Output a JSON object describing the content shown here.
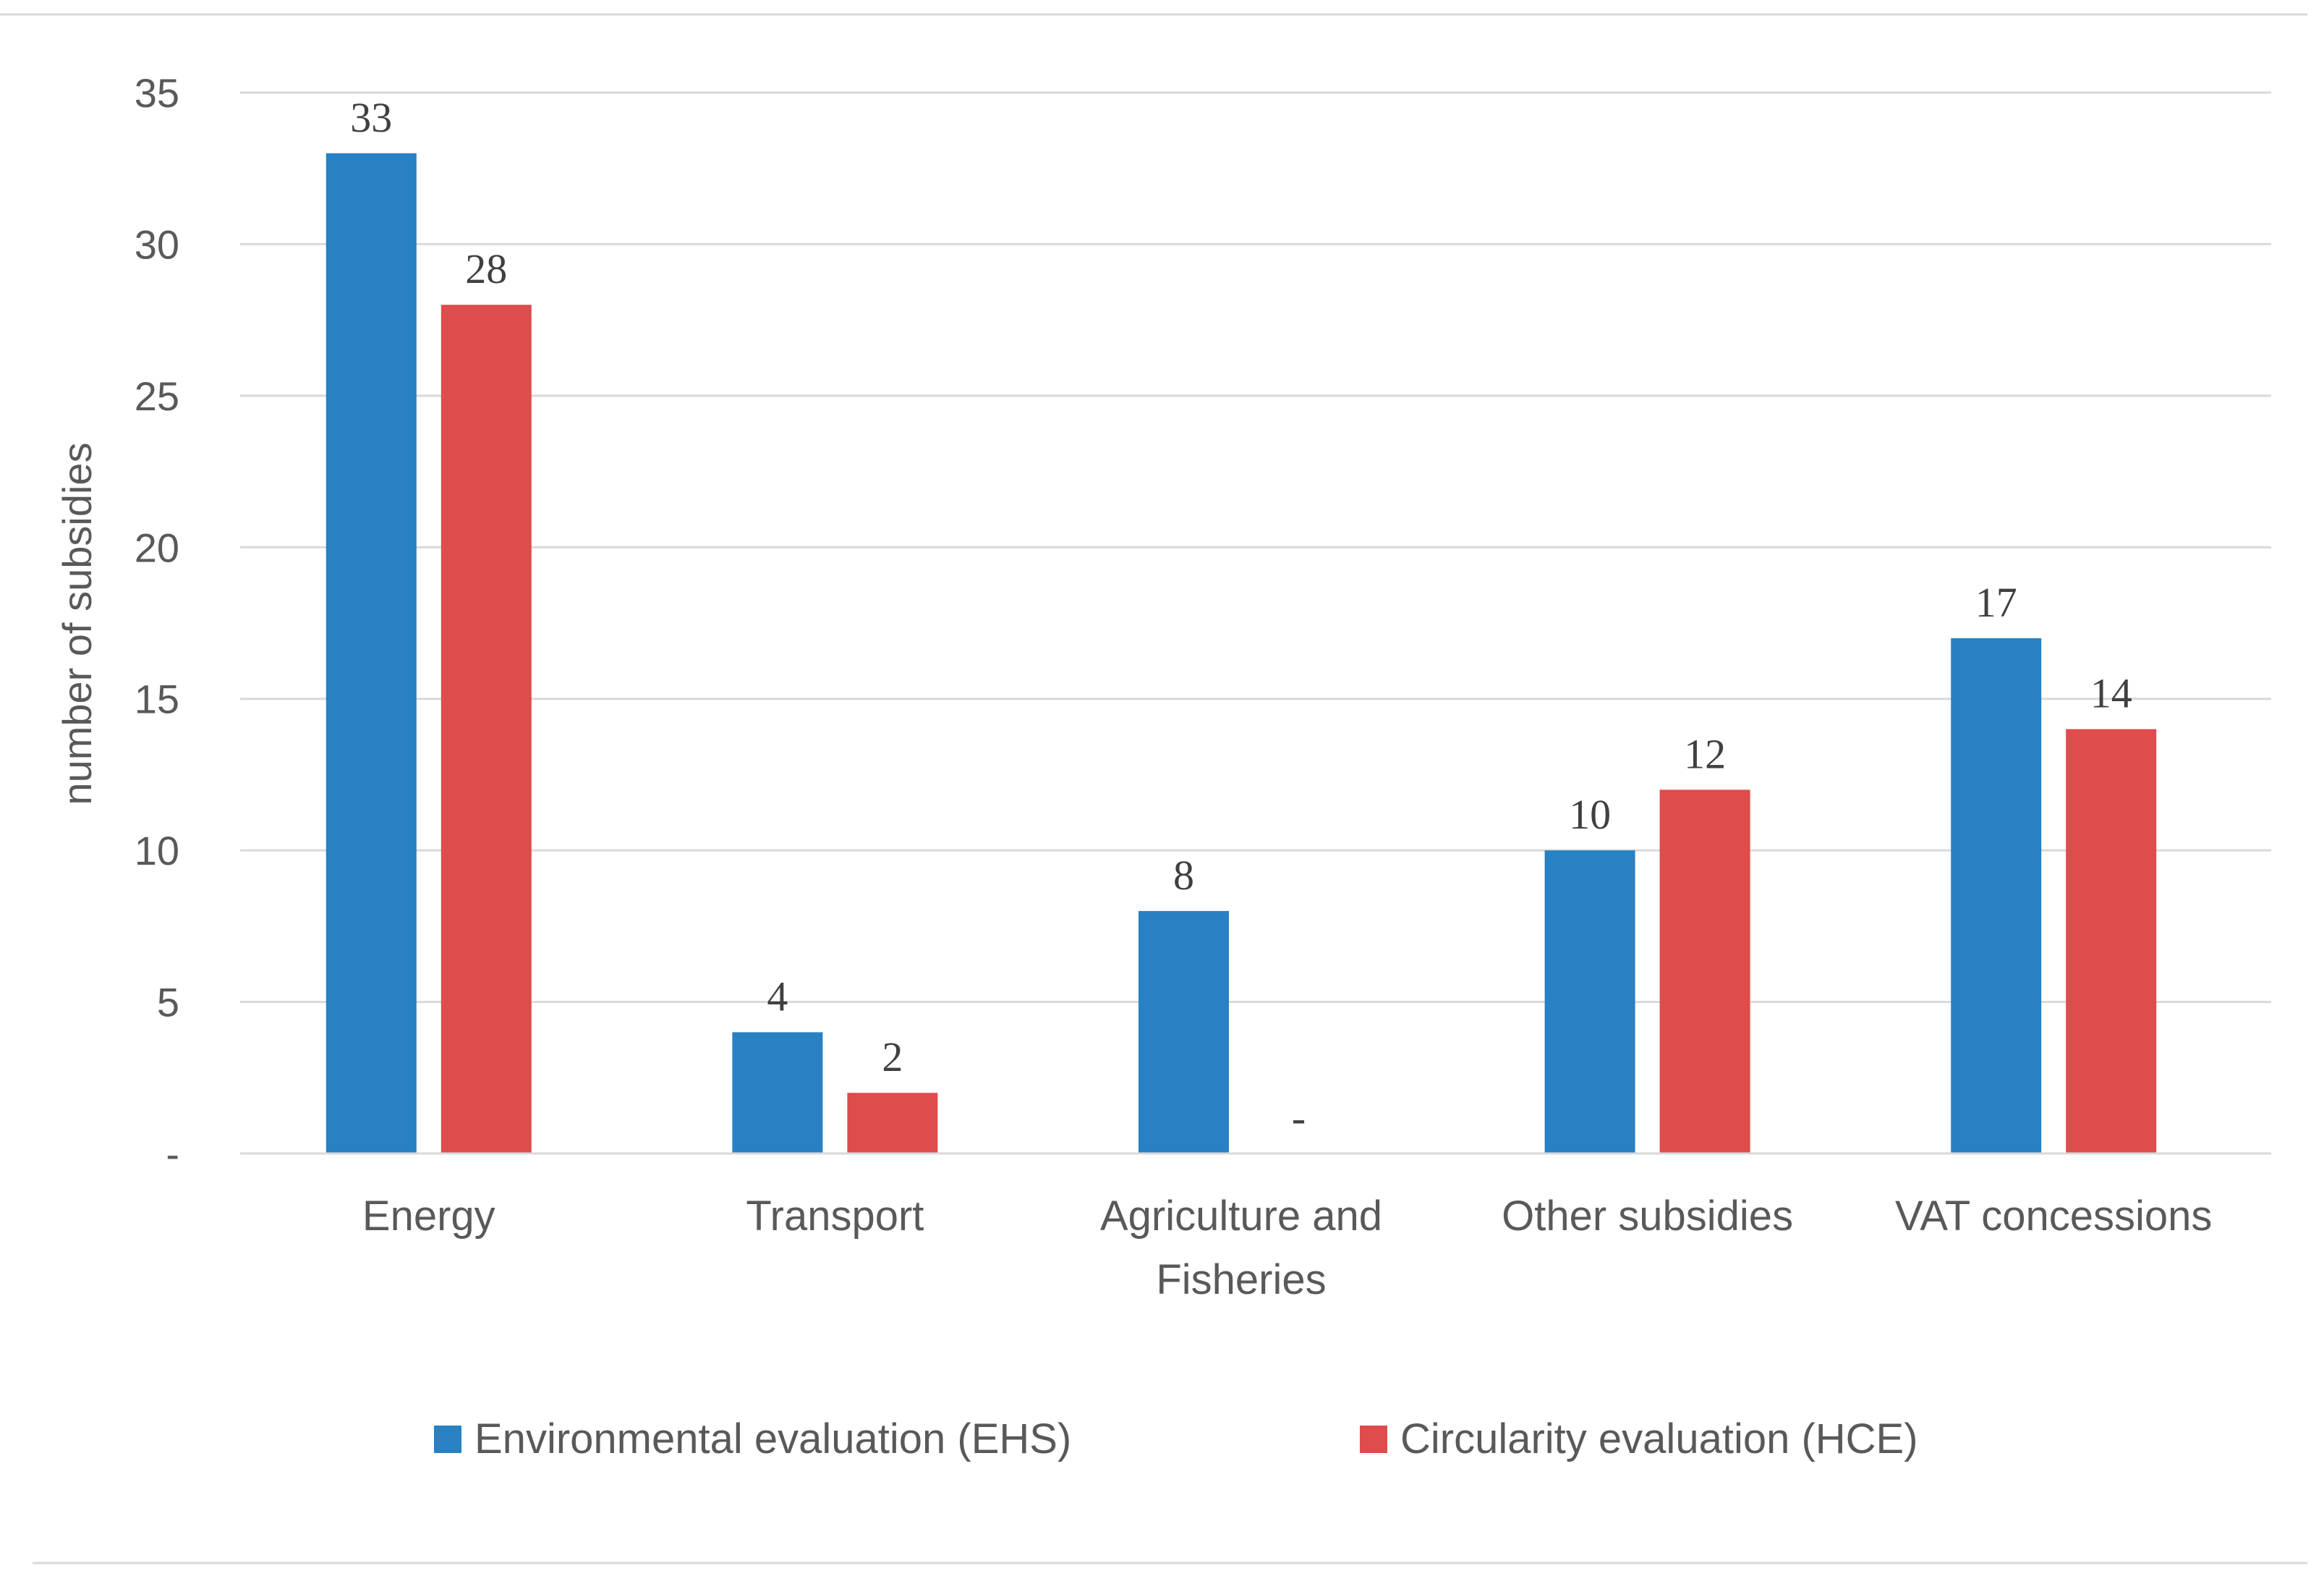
{
  "chart_data": {
    "type": "bar",
    "title": "",
    "xlabel": "",
    "ylabel": "number of subsidies",
    "ylim": [
      0,
      35
    ],
    "ytick_step": 5,
    "ytick_labels": [
      "-",
      "5",
      "10",
      "15",
      "20",
      "25",
      "30",
      "35"
    ],
    "grid": true,
    "legend_position": "bottom",
    "categories": [
      "Energy",
      "Transport",
      "Agriculture and Fisheries",
      "Other subsidies",
      "VAT concessions"
    ],
    "category_display": [
      [
        "Energy"
      ],
      [
        "Transport"
      ],
      [
        "Agriculture and",
        "Fisheries"
      ],
      [
        "Other subsidies"
      ],
      [
        "VAT concessions"
      ]
    ],
    "series": [
      {
        "name": "Environmental evaluation (EHS)",
        "color": "#2781c3",
        "values": [
          33,
          4,
          8,
          10,
          17
        ],
        "labels": [
          "33",
          "4",
          "8",
          "10",
          "17"
        ]
      },
      {
        "name": "Circularity evaluation (HCE)",
        "color": "#de4c4c",
        "values": [
          28,
          2,
          0,
          12,
          14
        ],
        "labels": [
          "28",
          "2",
          "-",
          "12",
          "14"
        ]
      }
    ]
  }
}
